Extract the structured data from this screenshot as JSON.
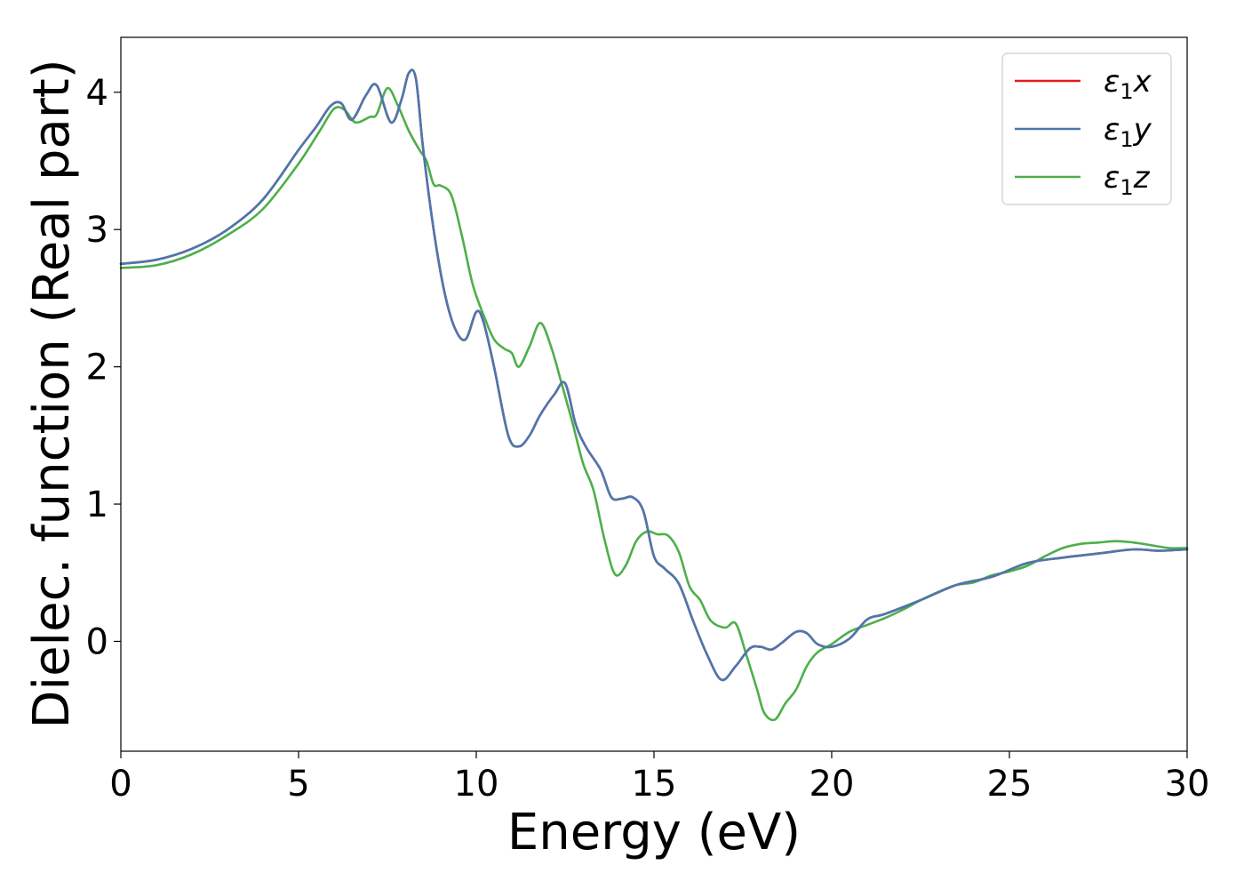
{
  "chart_data": {
    "type": "line",
    "xlabel": "Energy (eV)",
    "ylabel": "Dielec. function (Real part)",
    "xlim": [
      0,
      30
    ],
    "ylim": [
      -0.8,
      4.4
    ],
    "xticks": [
      0,
      5,
      10,
      15,
      20,
      25,
      30
    ],
    "xtick_labels": [
      "0",
      "5",
      "10",
      "15",
      "20",
      "25",
      "30"
    ],
    "yticks": [
      0,
      1,
      2,
      3,
      4
    ],
    "ytick_labels": [
      "0",
      "1",
      "2",
      "3",
      "4"
    ],
    "grid": false,
    "legend_position": "top-right",
    "series": [
      {
        "name": "ε₁x",
        "label_base": "ε",
        "label_sub": "1",
        "label_axis": "x",
        "color": "#e41a1c",
        "x": [
          0,
          1,
          2,
          3,
          4,
          5,
          5.5,
          5.9,
          6.2,
          6.5,
          6.9,
          7.2,
          7.6,
          7.9,
          8.1,
          8.3,
          8.5,
          8.8,
          9.1,
          9.4,
          9.7,
          10.0,
          10.2,
          10.5,
          10.9,
          11.2,
          11.5,
          11.8,
          12.2,
          12.5,
          12.8,
          13.1,
          13.5,
          13.8,
          14.1,
          14.4,
          14.7,
          15.0,
          15.3,
          15.7,
          16.1,
          16.5,
          16.9,
          17.3,
          17.7,
          18.0,
          18.3,
          18.6,
          19.0,
          19.3,
          19.6,
          20.0,
          20.5,
          21.0,
          21.5,
          22.5,
          23.5,
          24.5,
          25.5,
          26.5,
          27.5,
          28.5,
          29.2,
          30.0
        ],
        "y": [
          2.75,
          2.78,
          2.86,
          3.0,
          3.22,
          3.58,
          3.75,
          3.9,
          3.92,
          3.8,
          3.98,
          4.05,
          3.78,
          3.95,
          4.14,
          4.1,
          3.6,
          3.0,
          2.55,
          2.28,
          2.2,
          2.4,
          2.33,
          2.0,
          1.5,
          1.42,
          1.5,
          1.65,
          1.8,
          1.88,
          1.58,
          1.41,
          1.25,
          1.05,
          1.04,
          1.05,
          0.95,
          0.62,
          0.53,
          0.42,
          0.15,
          -0.1,
          -0.28,
          -0.18,
          -0.05,
          -0.04,
          -0.06,
          -0.01,
          0.07,
          0.06,
          -0.02,
          -0.04,
          0.02,
          0.16,
          0.2,
          0.3,
          0.41,
          0.47,
          0.57,
          0.61,
          0.64,
          0.67,
          0.66,
          0.67
        ]
      },
      {
        "name": "ε₁y",
        "label_base": "ε",
        "label_sub": "1",
        "label_axis": "y",
        "color": "#4a78b0",
        "x": [
          0,
          1,
          2,
          3,
          4,
          5,
          5.5,
          5.9,
          6.2,
          6.5,
          6.9,
          7.2,
          7.6,
          7.9,
          8.1,
          8.3,
          8.5,
          8.8,
          9.1,
          9.4,
          9.7,
          10.0,
          10.2,
          10.5,
          10.9,
          11.2,
          11.5,
          11.8,
          12.2,
          12.5,
          12.8,
          13.1,
          13.5,
          13.8,
          14.1,
          14.4,
          14.7,
          15.0,
          15.3,
          15.7,
          16.1,
          16.5,
          16.9,
          17.3,
          17.7,
          18.0,
          18.3,
          18.6,
          19.0,
          19.3,
          19.6,
          20.0,
          20.5,
          21.0,
          21.5,
          22.5,
          23.5,
          24.5,
          25.5,
          26.5,
          27.5,
          28.5,
          29.2,
          30.0
        ],
        "y": [
          2.75,
          2.78,
          2.86,
          3.0,
          3.22,
          3.58,
          3.75,
          3.9,
          3.92,
          3.8,
          3.98,
          4.05,
          3.78,
          3.95,
          4.14,
          4.1,
          3.6,
          3.0,
          2.55,
          2.28,
          2.2,
          2.4,
          2.33,
          2.0,
          1.5,
          1.42,
          1.5,
          1.65,
          1.8,
          1.88,
          1.58,
          1.41,
          1.25,
          1.05,
          1.04,
          1.05,
          0.95,
          0.62,
          0.53,
          0.42,
          0.15,
          -0.1,
          -0.28,
          -0.18,
          -0.05,
          -0.04,
          -0.06,
          -0.01,
          0.07,
          0.06,
          -0.02,
          -0.04,
          0.02,
          0.16,
          0.2,
          0.3,
          0.41,
          0.47,
          0.57,
          0.61,
          0.64,
          0.67,
          0.66,
          0.67
        ]
      },
      {
        "name": "ε₁z",
        "label_base": "ε",
        "label_sub": "1",
        "label_axis": "z",
        "color": "#4daf4a",
        "x": [
          0,
          1,
          2,
          3,
          4,
          5,
          5.6,
          6.0,
          6.3,
          6.6,
          7.0,
          7.2,
          7.5,
          7.8,
          8.1,
          8.4,
          8.6,
          8.8,
          9.0,
          9.3,
          9.6,
          9.9,
          10.2,
          10.5,
          10.8,
          11.0,
          11.2,
          11.5,
          11.8,
          12.1,
          12.4,
          12.7,
          13.0,
          13.3,
          13.6,
          13.9,
          14.2,
          14.5,
          14.8,
          15.1,
          15.4,
          15.7,
          16.0,
          16.3,
          16.6,
          17.0,
          17.3,
          17.6,
          17.9,
          18.1,
          18.4,
          18.7,
          19.0,
          19.3,
          19.6,
          20.0,
          20.5,
          21.0,
          21.5,
          22.0,
          22.5,
          23.0,
          23.5,
          24.0,
          24.5,
          25.0,
          25.5,
          26.0,
          26.5,
          27.0,
          27.5,
          28.0,
          28.5,
          29.0,
          29.5,
          30.0
        ],
        "y": [
          2.72,
          2.74,
          2.82,
          2.96,
          3.15,
          3.48,
          3.72,
          3.88,
          3.87,
          3.78,
          3.82,
          3.84,
          4.03,
          3.9,
          3.72,
          3.58,
          3.5,
          3.33,
          3.32,
          3.25,
          2.95,
          2.6,
          2.38,
          2.2,
          2.13,
          2.1,
          2.0,
          2.15,
          2.32,
          2.15,
          1.88,
          1.6,
          1.3,
          1.1,
          0.75,
          0.49,
          0.55,
          0.73,
          0.8,
          0.78,
          0.77,
          0.65,
          0.4,
          0.3,
          0.15,
          0.1,
          0.13,
          -0.1,
          -0.35,
          -0.52,
          -0.57,
          -0.45,
          -0.35,
          -0.18,
          -0.08,
          -0.02,
          0.07,
          0.12,
          0.17,
          0.23,
          0.3,
          0.36,
          0.41,
          0.43,
          0.48,
          0.51,
          0.55,
          0.62,
          0.68,
          0.71,
          0.72,
          0.73,
          0.72,
          0.7,
          0.68,
          0.68
        ]
      }
    ]
  }
}
